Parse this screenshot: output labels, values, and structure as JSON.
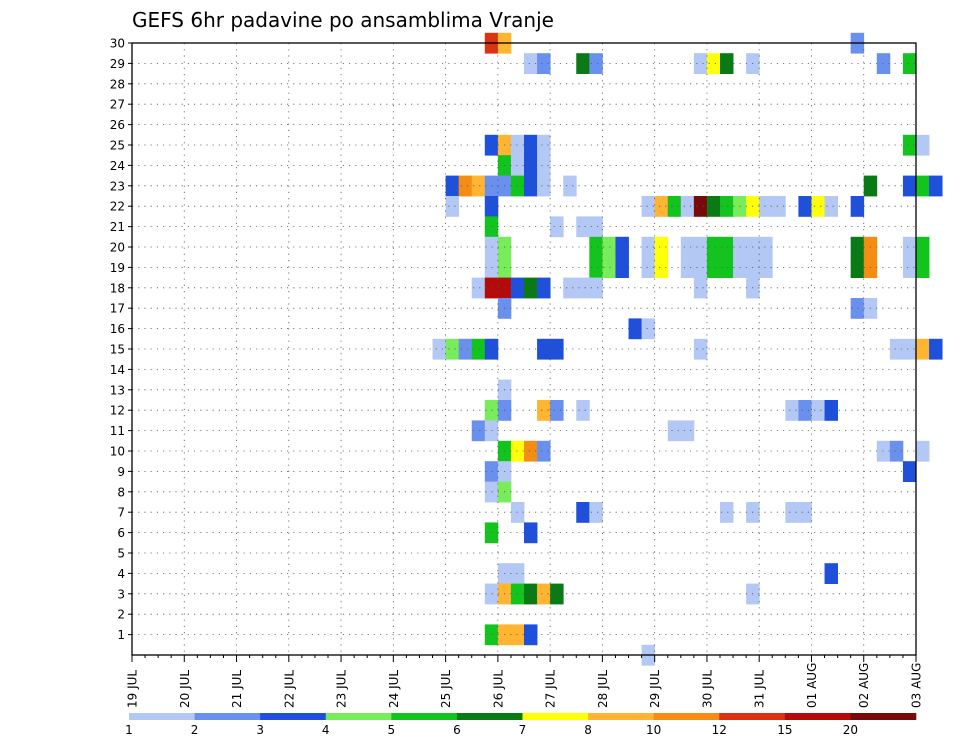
{
  "chart_data": {
    "type": "heatmap",
    "title": "GEFS 6hr padavine po ansamblima Vranje",
    "xlabel": "",
    "ylabel": "",
    "x_tick_labels": [
      "19 JUL",
      "20 JUL",
      "21 JUL",
      "22 JUL",
      "23 JUL",
      "24 JUL",
      "25 JUL",
      "26 JUL",
      "27 JUL",
      "28 JUL",
      "29 JUL",
      "30 JUL",
      "31 JUL",
      "01 AUG",
      "02 AUG",
      "03 AUG"
    ],
    "y_tick_labels": [
      "1",
      "2",
      "3",
      "4",
      "5",
      "6",
      "7",
      "8",
      "9",
      "10",
      "11",
      "12",
      "13",
      "14",
      "15",
      "16",
      "17",
      "18",
      "19",
      "20",
      "21",
      "22",
      "23",
      "24",
      "25",
      "26",
      "27",
      "28",
      "29",
      "30"
    ],
    "y_range": [
      0,
      30
    ],
    "time_steps_per_day": 4,
    "grid": "dotted",
    "legend": {
      "position": "bottom",
      "labels": [
        "1",
        "2",
        "3",
        "4",
        "5",
        "6",
        "7",
        "8",
        "10",
        "12",
        "15",
        "20"
      ],
      "colors": [
        "#b4c8f5",
        "#6a90ee",
        "#1e50dc",
        "#78ec5a",
        "#14c41e",
        "#0a7a14",
        "#ffff0a",
        "#ffb432",
        "#f58c14",
        "#dc3214",
        "#b40a0a",
        "#780a0a"
      ]
    },
    "cells": [
      {
        "member": 30,
        "step": 27,
        "level": 10
      },
      {
        "member": 30,
        "step": 28,
        "level": 8
      },
      {
        "member": 30,
        "step": 55,
        "level": 2
      },
      {
        "member": 29,
        "step": 30,
        "level": 1
      },
      {
        "member": 29,
        "step": 31,
        "level": 2
      },
      {
        "member": 29,
        "step": 34,
        "level": 6
      },
      {
        "member": 29,
        "step": 35,
        "level": 2
      },
      {
        "member": 29,
        "step": 43,
        "level": 1
      },
      {
        "member": 29,
        "step": 44,
        "level": 7
      },
      {
        "member": 29,
        "step": 45,
        "level": 6
      },
      {
        "member": 29,
        "step": 47,
        "level": 1
      },
      {
        "member": 29,
        "step": 57,
        "level": 2
      },
      {
        "member": 29,
        "step": 59,
        "level": 5
      },
      {
        "member": 25,
        "step": 27,
        "level": 3
      },
      {
        "member": 25,
        "step": 28,
        "level": 8
      },
      {
        "member": 25,
        "step": 29,
        "level": 1
      },
      {
        "member": 25,
        "step": 30,
        "level": 3
      },
      {
        "member": 25,
        "step": 31,
        "level": 1
      },
      {
        "member": 25,
        "step": 59,
        "level": 5
      },
      {
        "member": 25,
        "step": 60,
        "level": 1
      },
      {
        "member": 24,
        "step": 28,
        "level": 5
      },
      {
        "member": 24,
        "step": 29,
        "level": 1
      },
      {
        "member": 24,
        "step": 30,
        "level": 3
      },
      {
        "member": 24,
        "step": 31,
        "level": 1
      },
      {
        "member": 23,
        "step": 24,
        "level": 3
      },
      {
        "member": 23,
        "step": 25,
        "level": 9
      },
      {
        "member": 23,
        "step": 26,
        "level": 8
      },
      {
        "member": 23,
        "step": 27,
        "level": 2
      },
      {
        "member": 23,
        "step": 28,
        "level": 2
      },
      {
        "member": 23,
        "step": 29,
        "level": 5
      },
      {
        "member": 23,
        "step": 30,
        "level": 3
      },
      {
        "member": 23,
        "step": 31,
        "level": 1
      },
      {
        "member": 23,
        "step": 33,
        "level": 1
      },
      {
        "member": 23,
        "step": 56,
        "level": 6
      },
      {
        "member": 23,
        "step": 59,
        "level": 3
      },
      {
        "member": 23,
        "step": 60,
        "level": 5
      },
      {
        "member": 23,
        "step": 61,
        "level": 3
      },
      {
        "member": 22,
        "step": 24,
        "level": 1
      },
      {
        "member": 22,
        "step": 27,
        "level": 3
      },
      {
        "member": 22,
        "step": 39,
        "level": 1
      },
      {
        "member": 22,
        "step": 40,
        "level": 8
      },
      {
        "member": 22,
        "step": 41,
        "level": 5
      },
      {
        "member": 22,
        "step": 42,
        "level": 1
      },
      {
        "member": 22,
        "step": 43,
        "level": 12
      },
      {
        "member": 22,
        "step": 44,
        "level": 6
      },
      {
        "member": 22,
        "step": 45,
        "level": 5
      },
      {
        "member": 22,
        "step": 46,
        "level": 4
      },
      {
        "member": 22,
        "step": 47,
        "level": 7
      },
      {
        "member": 22,
        "step": 48,
        "level": 1
      },
      {
        "member": 22,
        "step": 49,
        "level": 1
      },
      {
        "member": 22,
        "step": 51,
        "level": 3
      },
      {
        "member": 22,
        "step": 52,
        "level": 7
      },
      {
        "member": 22,
        "step": 53,
        "level": 1
      },
      {
        "member": 22,
        "step": 55,
        "level": 3
      },
      {
        "member": 21,
        "step": 27,
        "level": 5
      },
      {
        "member": 21,
        "step": 32,
        "level": 1
      },
      {
        "member": 21,
        "step": 34,
        "level": 1
      },
      {
        "member": 21,
        "step": 35,
        "level": 1
      },
      {
        "member": 20,
        "step": 27,
        "level": 1
      },
      {
        "member": 20,
        "step": 28,
        "level": 4
      },
      {
        "member": 20,
        "step": 35,
        "level": 5
      },
      {
        "member": 20,
        "step": 36,
        "level": 4
      },
      {
        "member": 20,
        "step": 37,
        "level": 3
      },
      {
        "member": 20,
        "step": 39,
        "level": 1
      },
      {
        "member": 20,
        "step": 40,
        "level": 7
      },
      {
        "member": 20,
        "step": 42,
        "level": 1
      },
      {
        "member": 20,
        "step": 43,
        "level": 1
      },
      {
        "member": 20,
        "step": 44,
        "level": 5
      },
      {
        "member": 20,
        "step": 45,
        "level": 5
      },
      {
        "member": 20,
        "step": 46,
        "level": 1
      },
      {
        "member": 20,
        "step": 47,
        "level": 1
      },
      {
        "member": 20,
        "step": 48,
        "level": 1
      },
      {
        "member": 20,
        "step": 55,
        "level": 6
      },
      {
        "member": 20,
        "step": 56,
        "level": 9
      },
      {
        "member": 20,
        "step": 59,
        "level": 1
      },
      {
        "member": 20,
        "step": 60,
        "level": 5
      },
      {
        "member": 19,
        "step": 27,
        "level": 1
      },
      {
        "member": 19,
        "step": 28,
        "level": 4
      },
      {
        "member": 19,
        "step": 35,
        "level": 5
      },
      {
        "member": 19,
        "step": 36,
        "level": 4
      },
      {
        "member": 19,
        "step": 37,
        "level": 3
      },
      {
        "member": 19,
        "step": 39,
        "level": 1
      },
      {
        "member": 19,
        "step": 40,
        "level": 7
      },
      {
        "member": 19,
        "step": 42,
        "level": 1
      },
      {
        "member": 19,
        "step": 43,
        "level": 1
      },
      {
        "member": 19,
        "step": 44,
        "level": 5
      },
      {
        "member": 19,
        "step": 45,
        "level": 5
      },
      {
        "member": 19,
        "step": 46,
        "level": 1
      },
      {
        "member": 19,
        "step": 47,
        "level": 1
      },
      {
        "member": 19,
        "step": 48,
        "level": 1
      },
      {
        "member": 19,
        "step": 55,
        "level": 6
      },
      {
        "member": 19,
        "step": 56,
        "level": 9
      },
      {
        "member": 19,
        "step": 59,
        "level": 1
      },
      {
        "member": 19,
        "step": 60,
        "level": 5
      },
      {
        "member": 18,
        "step": 26,
        "level": 1
      },
      {
        "member": 18,
        "step": 27,
        "level": 11
      },
      {
        "member": 18,
        "step": 28,
        "level": 11
      },
      {
        "member": 18,
        "step": 29,
        "level": 3
      },
      {
        "member": 18,
        "step": 30,
        "level": 6
      },
      {
        "member": 18,
        "step": 31,
        "level": 3
      },
      {
        "member": 18,
        "step": 33,
        "level": 1
      },
      {
        "member": 18,
        "step": 34,
        "level": 1
      },
      {
        "member": 18,
        "step": 35,
        "level": 1
      },
      {
        "member": 18,
        "step": 43,
        "level": 1
      },
      {
        "member": 18,
        "step": 47,
        "level": 1
      },
      {
        "member": 17,
        "step": 28,
        "level": 2
      },
      {
        "member": 17,
        "step": 55,
        "level": 2
      },
      {
        "member": 17,
        "step": 56,
        "level": 1
      },
      {
        "member": 16,
        "step": 38,
        "level": 3
      },
      {
        "member": 16,
        "step": 39,
        "level": 1
      },
      {
        "member": 15,
        "step": 23,
        "level": 1
      },
      {
        "member": 15,
        "step": 24,
        "level": 4
      },
      {
        "member": 15,
        "step": 25,
        "level": 2
      },
      {
        "member": 15,
        "step": 26,
        "level": 5
      },
      {
        "member": 15,
        "step": 27,
        "level": 3
      },
      {
        "member": 15,
        "step": 31,
        "level": 3
      },
      {
        "member": 15,
        "step": 32,
        "level": 3
      },
      {
        "member": 15,
        "step": 43,
        "level": 1
      },
      {
        "member": 15,
        "step": 58,
        "level": 1
      },
      {
        "member": 15,
        "step": 59,
        "level": 1
      },
      {
        "member": 15,
        "step": 60,
        "level": 8
      },
      {
        "member": 15,
        "step": 61,
        "level": 3
      },
      {
        "member": 13,
        "step": 28,
        "level": 1
      },
      {
        "member": 12,
        "step": 27,
        "level": 4
      },
      {
        "member": 12,
        "step": 28,
        "level": 2
      },
      {
        "member": 12,
        "step": 31,
        "level": 8
      },
      {
        "member": 12,
        "step": 32,
        "level": 2
      },
      {
        "member": 12,
        "step": 34,
        "level": 1
      },
      {
        "member": 12,
        "step": 50,
        "level": 1
      },
      {
        "member": 12,
        "step": 51,
        "level": 2
      },
      {
        "member": 12,
        "step": 52,
        "level": 1
      },
      {
        "member": 12,
        "step": 53,
        "level": 3
      },
      {
        "member": 11,
        "step": 26,
        "level": 2
      },
      {
        "member": 11,
        "step": 27,
        "level": 1
      },
      {
        "member": 11,
        "step": 41,
        "level": 1
      },
      {
        "member": 11,
        "step": 42,
        "level": 1
      },
      {
        "member": 10,
        "step": 28,
        "level": 5
      },
      {
        "member": 10,
        "step": 29,
        "level": 7
      },
      {
        "member": 10,
        "step": 30,
        "level": 9
      },
      {
        "member": 10,
        "step": 31,
        "level": 2
      },
      {
        "member": 10,
        "step": 57,
        "level": 1
      },
      {
        "member": 10,
        "step": 58,
        "level": 2
      },
      {
        "member": 10,
        "step": 60,
        "level": 1
      },
      {
        "member": 9,
        "step": 27,
        "level": 2
      },
      {
        "member": 9,
        "step": 28,
        "level": 1
      },
      {
        "member": 9,
        "step": 59,
        "level": 3
      },
      {
        "member": 8,
        "step": 27,
        "level": 1
      },
      {
        "member": 8,
        "step": 28,
        "level": 4
      },
      {
        "member": 7,
        "step": 29,
        "level": 1
      },
      {
        "member": 7,
        "step": 34,
        "level": 3
      },
      {
        "member": 7,
        "step": 35,
        "level": 1
      },
      {
        "member": 7,
        "step": 45,
        "level": 1
      },
      {
        "member": 7,
        "step": 47,
        "level": 1
      },
      {
        "member": 7,
        "step": 50,
        "level": 1
      },
      {
        "member": 7,
        "step": 51,
        "level": 1
      },
      {
        "member": 6,
        "step": 27,
        "level": 5
      },
      {
        "member": 6,
        "step": 30,
        "level": 3
      },
      {
        "member": 4,
        "step": 28,
        "level": 1
      },
      {
        "member": 4,
        "step": 29,
        "level": 1
      },
      {
        "member": 4,
        "step": 53,
        "level": 3
      },
      {
        "member": 3,
        "step": 27,
        "level": 1
      },
      {
        "member": 3,
        "step": 28,
        "level": 8
      },
      {
        "member": 3,
        "step": 29,
        "level": 5
      },
      {
        "member": 3,
        "step": 30,
        "level": 6
      },
      {
        "member": 3,
        "step": 31,
        "level": 8
      },
      {
        "member": 3,
        "step": 32,
        "level": 6
      },
      {
        "member": 3,
        "step": 47,
        "level": 1
      },
      {
        "member": 1,
        "step": 27,
        "level": 5
      },
      {
        "member": 1,
        "step": 28,
        "level": 8
      },
      {
        "member": 1,
        "step": 29,
        "level": 8
      },
      {
        "member": 1,
        "step": 30,
        "level": 3
      },
      {
        "member": 0,
        "step": 39,
        "level": 1
      }
    ]
  }
}
